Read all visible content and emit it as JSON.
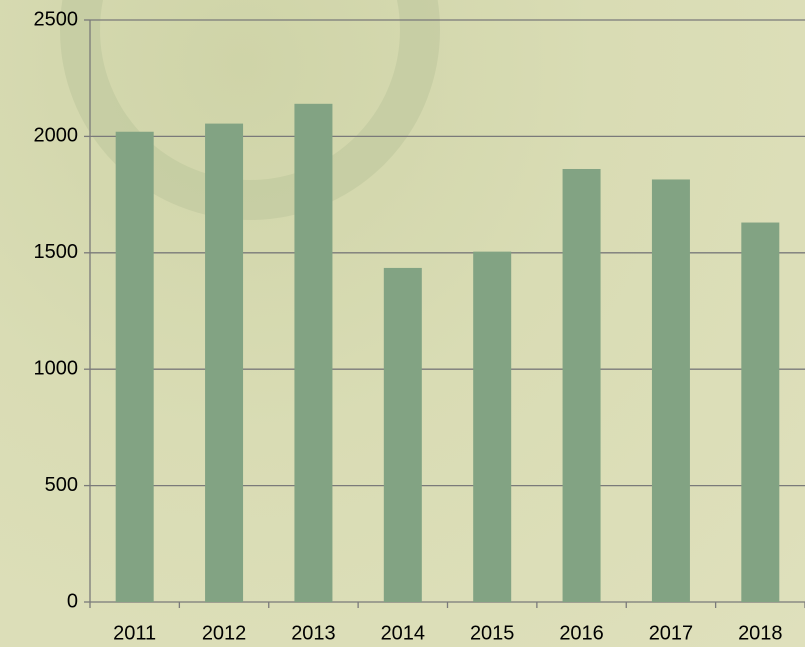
{
  "chart_data": {
    "type": "bar",
    "categories": [
      "2011",
      "2012",
      "2013",
      "2014",
      "2015",
      "2016",
      "2017",
      "2018"
    ],
    "values": [
      2020,
      2055,
      2140,
      1435,
      1505,
      1860,
      1815,
      1630
    ],
    "color": "#82a383",
    "ylim": [
      0,
      2500
    ],
    "yticks": [
      0,
      500,
      1000,
      1500,
      2000,
      2500
    ],
    "grid": true
  }
}
